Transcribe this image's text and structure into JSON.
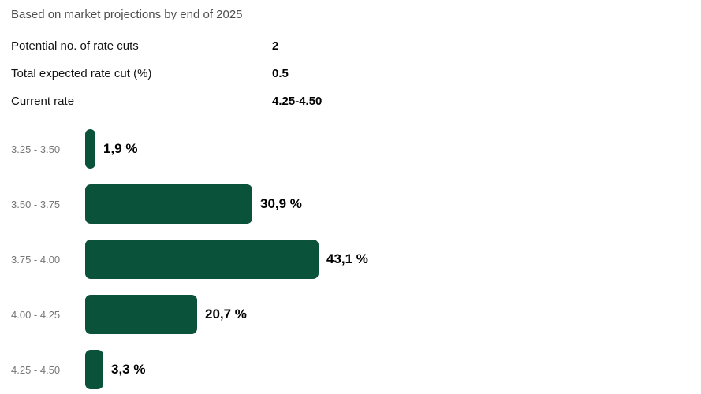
{
  "header": {
    "subtitle": "Based on market projections by end of 2025"
  },
  "summary": {
    "rows": [
      {
        "label": "Potential no. of rate cuts",
        "value": "2"
      },
      {
        "label": "Total expected rate cut (%)",
        "value": "0.5"
      },
      {
        "label": "Current rate",
        "value": "4.25-4.50"
      }
    ]
  },
  "chart_data": {
    "type": "bar",
    "orientation": "horizontal",
    "title": "Based on market projections by end of 2025",
    "categories": [
      "3.25 - 3.50",
      "3.50 - 3.75",
      "3.75 - 4.00",
      "4.00 - 4.25",
      "4.25 - 4.50"
    ],
    "values": [
      1.9,
      30.9,
      43.1,
      20.7,
      3.3
    ],
    "value_labels": [
      "1,9 %",
      "30,9 %",
      "43,1 %",
      "20,7 %",
      "3,3 %"
    ],
    "xlabel": "",
    "ylabel": "",
    "xlim": [
      0,
      45
    ],
    "grid": false,
    "legend": false,
    "bar_color": "#0b523a",
    "category_label_color": "#767676",
    "value_label_color": "#000000"
  }
}
